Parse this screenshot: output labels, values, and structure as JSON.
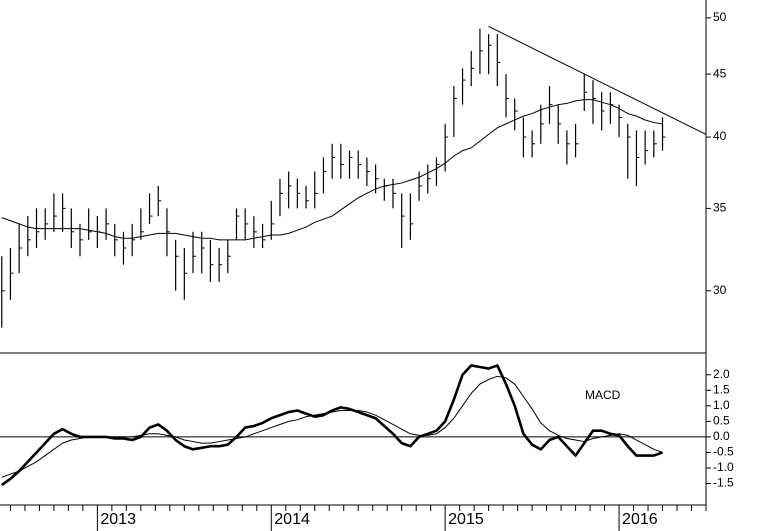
{
  "chart_data": [
    {
      "type": "ohlc",
      "x": [
        2012.45,
        2012.5,
        2012.55,
        2012.6,
        2012.65,
        2012.7,
        2012.75,
        2012.8,
        2012.85,
        2012.9,
        2012.95,
        2013.0,
        2013.05,
        2013.1,
        2013.15,
        2013.2,
        2013.25,
        2013.3,
        2013.35,
        2013.4,
        2013.45,
        2013.5,
        2013.55,
        2013.6,
        2013.65,
        2013.7,
        2013.75,
        2013.8,
        2013.85,
        2013.9,
        2013.95,
        2014.0,
        2014.05,
        2014.1,
        2014.15,
        2014.2,
        2014.25,
        2014.3,
        2014.35,
        2014.4,
        2014.45,
        2014.5,
        2014.55,
        2014.6,
        2014.65,
        2014.7,
        2014.75,
        2014.8,
        2014.85,
        2014.9,
        2014.95,
        2015.0,
        2015.05,
        2015.1,
        2015.15,
        2015.2,
        2015.25,
        2015.3,
        2015.35,
        2015.4,
        2015.45,
        2015.5,
        2015.55,
        2015.6,
        2015.65,
        2015.7,
        2015.75,
        2015.8,
        2015.85,
        2015.9,
        2015.95,
        2016.0,
        2016.05,
        2016.1,
        2016.15,
        2016.2,
        2016.25
      ],
      "high": [
        32,
        32.5,
        34,
        34.5,
        35,
        35,
        36,
        36,
        35,
        34,
        35,
        34.5,
        35,
        34,
        33.5,
        34,
        35,
        36,
        36.5,
        35,
        33,
        32.5,
        33.5,
        33.5,
        33,
        32.5,
        33,
        35,
        35,
        34.5,
        34,
        35.5,
        37,
        37.5,
        37,
        36.5,
        37.5,
        38.5,
        39.5,
        39.5,
        39,
        39,
        38.5,
        38,
        37,
        37,
        36,
        36,
        37.5,
        38,
        38.5,
        41,
        44,
        45.5,
        47,
        49,
        48.5,
        48.5,
        45,
        43,
        41.5,
        40.5,
        42.5,
        44,
        42.5,
        40.5,
        41,
        45,
        44.5,
        43.5,
        43.5,
        42.5,
        41,
        40.5,
        40.5,
        40.5,
        41.5
      ],
      "low": [
        28,
        29.5,
        31,
        32,
        32.5,
        33,
        33.5,
        33.5,
        32.5,
        32,
        33,
        32.5,
        33,
        32,
        31.5,
        32,
        33,
        34,
        34.5,
        32,
        30,
        29.5,
        31,
        31,
        30.5,
        30.5,
        31,
        33,
        33,
        32.5,
        32.5,
        33,
        34.5,
        35,
        35,
        35,
        35,
        36,
        37,
        37,
        37,
        37,
        36.5,
        36,
        35.5,
        35,
        32.5,
        33,
        35.5,
        36,
        36.5,
        37.5,
        40,
        42.5,
        44,
        45,
        45,
        44,
        41.5,
        40.5,
        38.5,
        38.5,
        39.5,
        41,
        39.5,
        38,
        38.5,
        42,
        41,
        40.5,
        41,
        40,
        37,
        36.5,
        38,
        38.5,
        39
      ],
      "close": [
        30,
        31,
        32.5,
        33,
        33.5,
        34,
        34.5,
        35,
        33.5,
        33,
        33.5,
        33.5,
        34,
        33,
        32.5,
        33,
        33.5,
        34.5,
        35.5,
        33.5,
        32,
        31,
        32,
        32.5,
        31.5,
        31.5,
        32,
        34.5,
        34,
        33.5,
        33,
        34,
        36,
        36.5,
        36,
        35.5,
        36,
        37.5,
        38.5,
        38,
        38.5,
        38,
        37.5,
        37,
        36.5,
        36,
        34.5,
        34,
        36.5,
        37,
        38,
        40,
        43,
        44.5,
        45.5,
        47,
        47.5,
        46,
        43,
        42,
        40,
        39.5,
        41,
        42.5,
        41,
        39.5,
        39.5,
        43.5,
        43,
        42,
        42.5,
        41.5,
        40,
        38.5,
        39,
        39.5,
        40
      ],
      "ma": [
        34.4,
        34.2,
        34,
        33.8,
        33.7,
        33.7,
        33.7,
        33.7,
        33.7,
        33.7,
        33.6,
        33.5,
        33.4,
        33.2,
        33.1,
        33.1,
        33.2,
        33.3,
        33.4,
        33.4,
        33.4,
        33.3,
        33.2,
        33.1,
        33.1,
        33,
        33,
        33,
        33,
        33.1,
        33.2,
        33.3,
        33.3,
        33.4,
        33.6,
        33.8,
        34.1,
        34.3,
        34.5,
        34.9,
        35.3,
        35.7,
        36,
        36.3,
        36.5,
        36.6,
        36.7,
        36.9,
        37.1,
        37.4,
        37.7,
        38.1,
        38.6,
        39,
        39.2,
        39.7,
        40.2,
        40.7,
        41,
        41.3,
        41.6,
        41.8,
        42.1,
        42.3,
        42.5,
        42.6,
        42.8,
        42.9,
        42.9,
        42.7,
        42.5,
        42.2,
        41.8,
        41.6,
        41.3,
        41.1,
        41
      ],
      "trendline": {
        "x": [
          2015.25,
          2016.5
        ],
        "values": [
          49.2,
          40.2
        ]
      },
      "color": "#000000",
      "log_scale": true,
      "xlim": [
        2012.44,
        2016.5
      ],
      "ylim": [
        26.7,
        51.7
      ],
      "yticks": [
        30,
        35,
        40,
        45,
        50
      ]
    },
    {
      "type": "line",
      "label": "MACD",
      "x": [
        2012.45,
        2012.5,
        2012.55,
        2012.6,
        2012.65,
        2012.7,
        2012.75,
        2012.8,
        2012.85,
        2012.9,
        2012.95,
        2013.0,
        2013.05,
        2013.1,
        2013.15,
        2013.2,
        2013.25,
        2013.3,
        2013.35,
        2013.4,
        2013.45,
        2013.5,
        2013.55,
        2013.6,
        2013.65,
        2013.7,
        2013.75,
        2013.8,
        2013.85,
        2013.9,
        2013.95,
        2014.0,
        2014.05,
        2014.1,
        2014.15,
        2014.2,
        2014.25,
        2014.3,
        2014.35,
        2014.4,
        2014.45,
        2014.5,
        2014.55,
        2014.6,
        2014.65,
        2014.7,
        2014.75,
        2014.8,
        2014.85,
        2014.9,
        2014.95,
        2015.0,
        2015.05,
        2015.1,
        2015.15,
        2015.2,
        2015.25,
        2015.3,
        2015.35,
        2015.4,
        2015.45,
        2015.5,
        2015.55,
        2015.6,
        2015.65,
        2015.7,
        2015.75,
        2015.8,
        2015.85,
        2015.9,
        2015.95,
        2016.0,
        2016.05,
        2016.1,
        2016.15,
        2016.2,
        2016.25
      ],
      "series": [
        {
          "color": "#000000",
          "width": 2.6,
          "values": [
            -1.55,
            -1.35,
            -1.1,
            -0.8,
            -0.5,
            -0.2,
            0.1,
            0.25,
            0.1,
            0,
            0,
            0,
            0,
            -0.05,
            -0.05,
            -0.1,
            0,
            0.3,
            0.4,
            0.2,
            -0.1,
            -0.3,
            -0.4,
            -0.35,
            -0.3,
            -0.3,
            -0.25,
            0,
            0.3,
            0.35,
            0.45,
            0.6,
            0.7,
            0.8,
            0.85,
            0.75,
            0.65,
            0.7,
            0.85,
            0.95,
            0.9,
            0.8,
            0.7,
            0.6,
            0.35,
            0.1,
            -0.2,
            -0.3,
            0,
            0.1,
            0.2,
            0.5,
            1.2,
            2.0,
            2.3,
            2.25,
            2.2,
            2.3,
            1.7,
            1.0,
            0.1,
            -0.25,
            -0.4,
            -0.1,
            0,
            -0.3,
            -0.6,
            -0.2,
            0.2,
            0.2,
            0.1,
            0.05,
            -0.3,
            -0.6,
            -0.6,
            -0.6,
            -0.5
          ]
        },
        {
          "color": "#000000",
          "width": 1,
          "values": [
            -1.3,
            -1.2,
            -1.1,
            -0.95,
            -0.8,
            -0.6,
            -0.4,
            -0.2,
            -0.1,
            -0.05,
            0,
            0,
            0,
            0,
            0,
            0,
            0.05,
            0.1,
            0.1,
            0.05,
            0,
            -0.1,
            -0.15,
            -0.2,
            -0.2,
            -0.15,
            -0.1,
            -0.05,
            0,
            0.1,
            0.2,
            0.3,
            0.4,
            0.5,
            0.55,
            0.65,
            0.7,
            0.75,
            0.8,
            0.85,
            0.85,
            0.85,
            0.8,
            0.7,
            0.55,
            0.4,
            0.25,
            0.1,
            0.05,
            0.05,
            0.1,
            0.3,
            0.6,
            1.0,
            1.4,
            1.7,
            1.85,
            1.95,
            1.9,
            1.7,
            1.3,
            0.9,
            0.45,
            0.2,
            0.05,
            -0.05,
            -0.1,
            -0.15,
            -0.05,
            0,
            0.05,
            0.1,
            0.05,
            -0.1,
            -0.25,
            -0.4,
            -0.5
          ]
        }
      ],
      "xlim": [
        2012.44,
        2016.5
      ],
      "xticks": [
        2013,
        2014,
        2015,
        2016
      ],
      "ylim": [
        -2.03,
        2.7
      ],
      "yticks": [
        {
          "value": 2.0,
          "label": "2.0"
        },
        {
          "value": 1.5,
          "label": "1.5"
        },
        {
          "value": 1.0,
          "label": "1.0"
        },
        {
          "value": 0.5,
          "label": "0.5"
        },
        {
          "value": 0.0,
          "label": "0.0"
        },
        {
          "value": -0.5,
          "label": "-0.5"
        },
        {
          "value": -1.0,
          "label": "-1.0"
        },
        {
          "value": -1.5,
          "label": "-1.5"
        }
      ]
    }
  ]
}
